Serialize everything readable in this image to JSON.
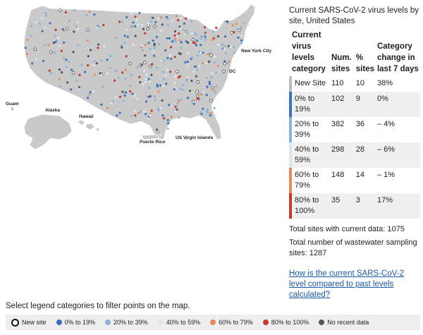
{
  "colors": {
    "new_site": "#ffffff",
    "p0_19": "#3f72b8",
    "p20_39": "#8cb4d9",
    "p40_59": "#dbe8f4",
    "p60_79": "#e98a56",
    "p80_100": "#c53a2b",
    "no_recent": "#555555",
    "state_fill": "#c9c9c9"
  },
  "map": {
    "labels": {
      "new_york_city": "New York City",
      "dc": "DC",
      "guam": "Guam",
      "alaska": "Alaska",
      "hawaii": "Hawaii",
      "puerto_rico": "Puerto Rico",
      "us_virgin_islands": "US Virgin Islands"
    }
  },
  "panel": {
    "title": "Current SARS-CoV-2 virus levels by site, United States",
    "headers": {
      "category": "Current virus levels category",
      "num_sites": "Num. sites",
      "pct_sites": "% sites",
      "change": "Category change in last 7 days"
    },
    "rows": [
      {
        "category": "New Site",
        "num_sites": "110",
        "pct_sites": "10",
        "change": "38%",
        "color": "#ffffff"
      },
      {
        "category": "0% to 19%",
        "num_sites": "102",
        "pct_sites": "9",
        "change": "0%",
        "color": "#3f72b8"
      },
      {
        "category": "20% to 39%",
        "num_sites": "382",
        "pct_sites": "36",
        "change": "– 4%",
        "color": "#8cb4d9"
      },
      {
        "category": "40% to 59%",
        "num_sites": "298",
        "pct_sites": "28",
        "change": "– 6%",
        "color": "#dbe8f4"
      },
      {
        "category": "60% to 79%",
        "num_sites": "148",
        "pct_sites": "14",
        "change": "– 1%",
        "color": "#e98a56"
      },
      {
        "category": "80% to 100%",
        "num_sites": "35",
        "pct_sites": "3",
        "change": "17%",
        "color": "#c53a2b"
      }
    ],
    "total_current": "Total sites with current data: 1075",
    "total_sampling": "Total number of wastewater sampling sites: 1287",
    "link_text": "How is the current SARS-CoV-2 level compared to past levels calculated?"
  },
  "legend": {
    "instructions": "Select legend categories to filter points on the map.",
    "items": [
      {
        "label": "New site",
        "color": "#ffffff",
        "icon": "ring-icon"
      },
      {
        "label": "0% to 19%",
        "color": "#3f72b8",
        "icon": "dot-icon"
      },
      {
        "label": "20% to 39%",
        "color": "#8cb4d9",
        "icon": "dot-icon"
      },
      {
        "label": "40% to 59%",
        "color": "#dbe8f4",
        "icon": "dot-icon"
      },
      {
        "label": "60% to 79%",
        "color": "#e98a56",
        "icon": "dot-icon"
      },
      {
        "label": "80% to 100%",
        "color": "#c53a2b",
        "icon": "dot-icon"
      },
      {
        "label": "No recent data",
        "color": "#555555",
        "icon": "dot-icon"
      }
    ]
  }
}
